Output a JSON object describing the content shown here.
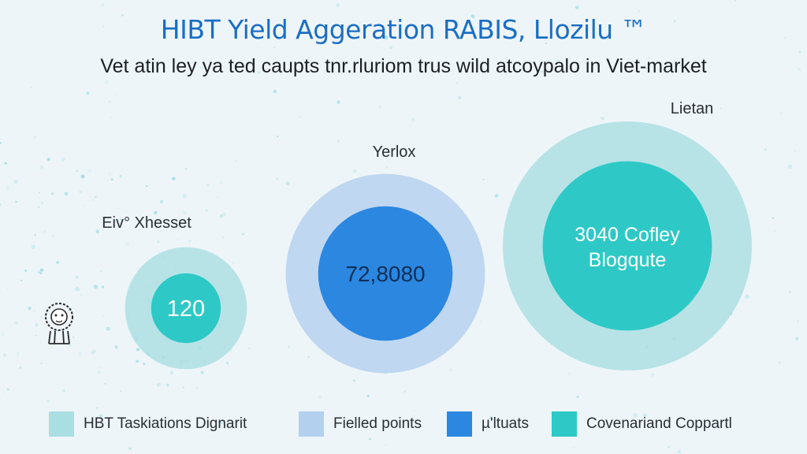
{
  "title": "HIBT Yield Aggeration RABIS, Llozilu ™",
  "subtitle": "Vet atin ley ya ted caupts tnr.rluriom trus wild atcoypalo in Viet-market",
  "colors": {
    "background": "#eef5f8",
    "title": "#1a6ec4",
    "light_teal": "#a9dfe2",
    "light_blue": "#b3d0ef",
    "blue": "#2b87e0",
    "teal": "#2ec9c6"
  },
  "chart_data": {
    "type": "bubble",
    "title": "HIBT Yield Aggeration RABIS, Llozilu ™",
    "subtitle": "Vet atin ley ya ted caupts tnr.rluriom trus wild atcoypalo in Viet-market",
    "bubbles": [
      {
        "label": "Eiv° Xhesset",
        "value_text": "120",
        "value": 120,
        "outer_color": "#a9dfe2",
        "inner_color": "#2ec9c6",
        "outer_size": 0.49,
        "inner_size": 0.28
      },
      {
        "label": "Yerlox",
        "value_text": "72,8080",
        "value": 728080,
        "outer_color": "#b3d0ef",
        "inner_color": "#2b87e0",
        "outer_size": 0.8,
        "inner_size": 0.54
      },
      {
        "label": "Lietan",
        "value_text": "3040 Cofley Blogqute",
        "value": 3040,
        "outer_color": "#a9dfe2",
        "inner_color": "#2ec9c6",
        "outer_size": 1.0,
        "inner_size": 0.68
      }
    ],
    "legend": [
      {
        "label": "HBT Taskiations Dignarit",
        "color": "#a9dfe2"
      },
      {
        "label": "Fielled points",
        "color": "#b3d0ef"
      },
      {
        "label": "µ'ltuats",
        "color": "#2b87e0"
      },
      {
        "label": "Covenariand Coppartl",
        "color": "#2ec9c6"
      }
    ],
    "legend_position": "bottom"
  },
  "mascot_icon": "lion-mascot-icon"
}
